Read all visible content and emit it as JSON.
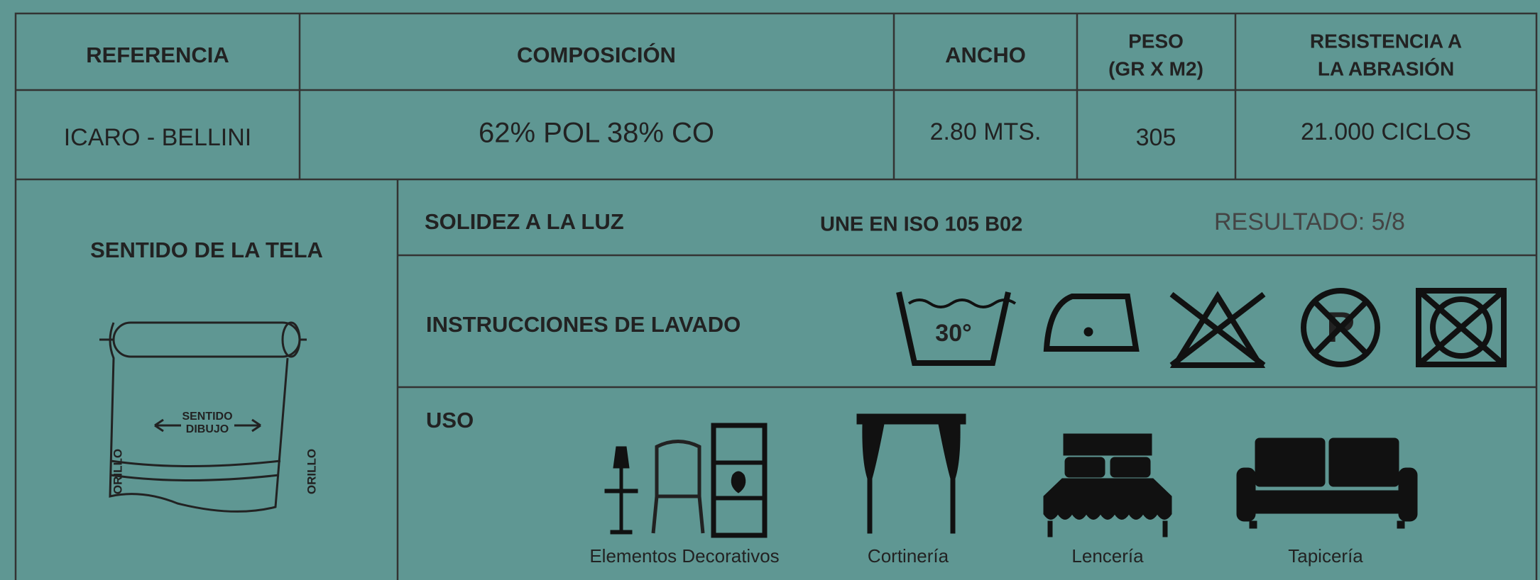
{
  "table": {
    "header": [
      "REFERENCIA",
      "COMPOSICIÓN",
      "ANCHO",
      [
        "PESO",
        "(GR X M2)"
      ],
      [
        "RESISTENCIA A",
        "LA ABRASIÓN"
      ]
    ],
    "row": [
      "ICARO - BELLINI",
      "62% POL  38% CO",
      "2.80 MTS.",
      "305",
      "21.000 CICLOS"
    ]
  },
  "fabric_direction": {
    "title": "SENTIDO DE LA TELA",
    "arrow": [
      "SENTIDO",
      "DIBUJO"
    ],
    "edge_left": "ORILLO",
    "edge_right": "ORILLO"
  },
  "light_fastness": {
    "label": "SOLIDEZ A LA LUZ",
    "standard": "UNE EN ISO 105 B02",
    "result": "RESULTADO: 5/8"
  },
  "washing": {
    "label": "INSTRUCCIONES DE LAVADO",
    "temperature": "30°"
  },
  "use": {
    "label": "USO",
    "items": [
      "Elementos Decorativos",
      "Cortinería",
      "Lencería",
      "Tapicería"
    ]
  }
}
